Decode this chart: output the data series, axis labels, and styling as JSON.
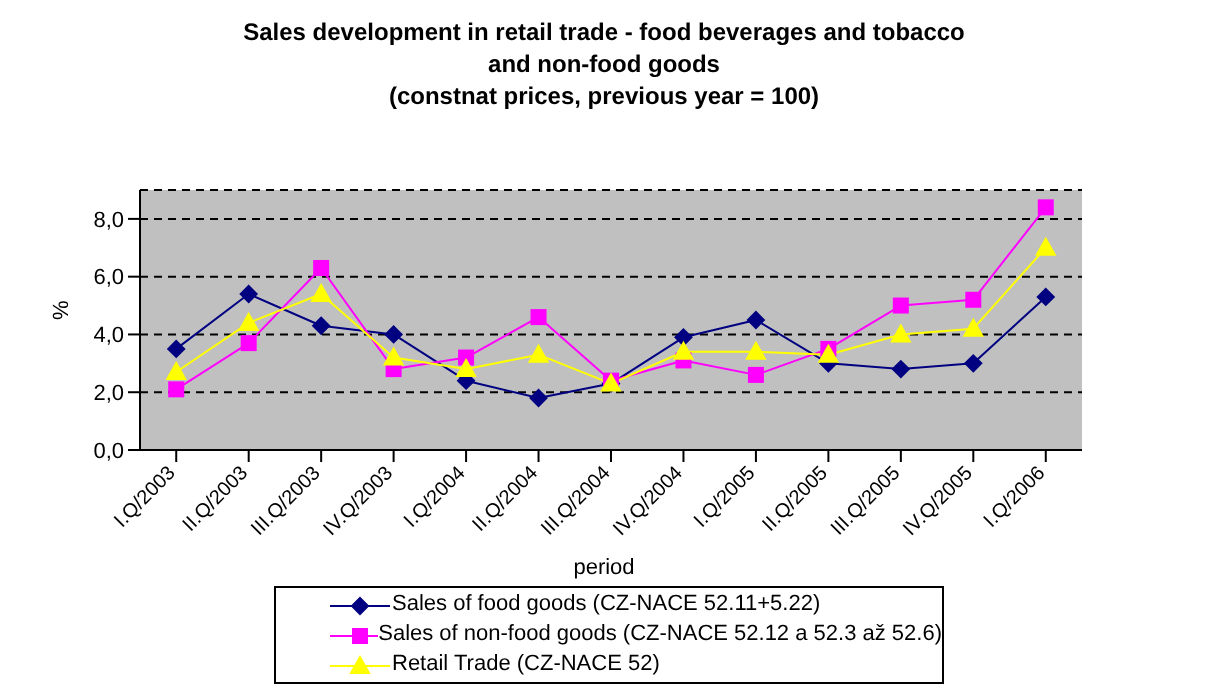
{
  "chart_data": {
    "type": "line",
    "title": "Sales development in retail trade - food beverages and tobacco\nand non-food goods\n(constnat prices, previous year = 100)",
    "xlabel": "period",
    "ylabel": "%",
    "categories": [
      "I.Q/2003",
      "II.Q/2003",
      "III.Q/2003",
      "IV.Q/2003",
      "I.Q/2004",
      "II.Q/2004",
      "III.Q/2004",
      "IV.Q/2004",
      "I.Q/2005",
      "II.Q/2005",
      "III.Q/2005",
      "IV.Q/2005",
      "I.Q/2006"
    ],
    "series": [
      {
        "name": "Sales of food goods (CZ-NACE 52.11+5.22)",
        "color": "#000080",
        "marker": "diamond",
        "values": [
          3.5,
          5.4,
          4.3,
          4.0,
          2.4,
          1.8,
          2.3,
          3.9,
          4.5,
          3.0,
          2.8,
          3.0,
          5.3
        ]
      },
      {
        "name": "Sales of non-food goods (CZ-NACE 52.12 a 52.3 až 52.6)",
        "color": "#ff00ff",
        "marker": "square",
        "values": [
          2.1,
          3.7,
          6.3,
          2.8,
          3.2,
          4.6,
          2.4,
          3.1,
          2.6,
          3.5,
          5.0,
          5.2,
          8.4
        ]
      },
      {
        "name": "Retail Trade (CZ-NACE 52)",
        "color": "#ffff00",
        "marker": "triangle",
        "values": [
          2.7,
          4.4,
          5.4,
          3.2,
          2.8,
          3.3,
          2.3,
          3.4,
          3.4,
          3.3,
          4.0,
          4.2,
          7.0
        ]
      }
    ],
    "ylim": [
      0,
      9
    ],
    "yticks": [
      {
        "value": 0,
        "label": "0,0"
      },
      {
        "value": 2,
        "label": "2,0"
      },
      {
        "value": 4,
        "label": "4,0"
      },
      {
        "value": 6,
        "label": "6,0"
      },
      {
        "value": 8,
        "label": "8,0"
      }
    ],
    "grid": "y",
    "legend": "bottom",
    "line_style": "solid"
  }
}
